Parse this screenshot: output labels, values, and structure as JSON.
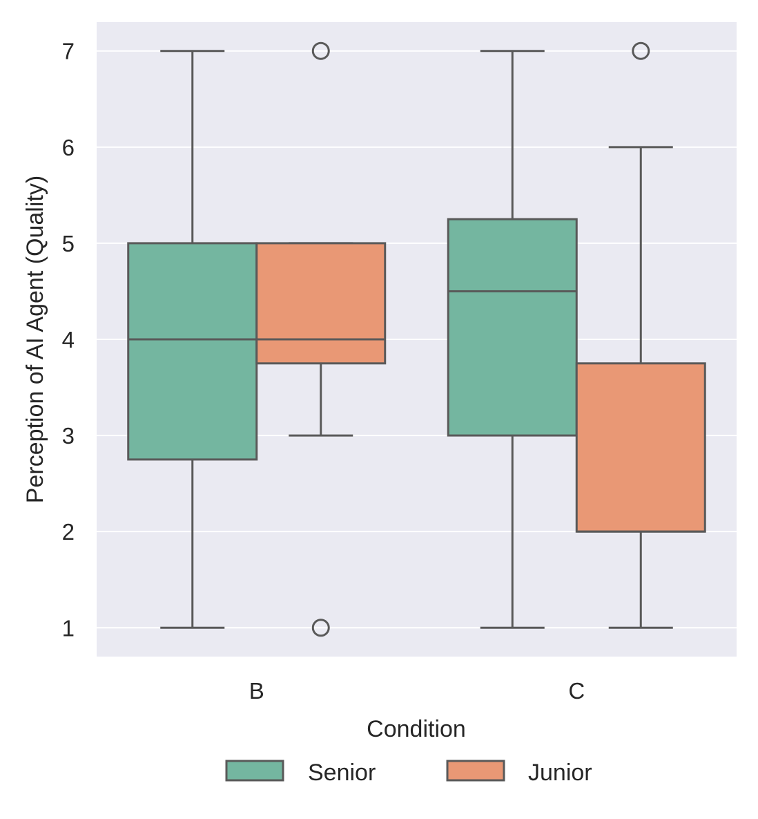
{
  "chart_data": {
    "type": "box",
    "xlabel": "Condition",
    "ylabel": "Perception of AI Agent (Quality)",
    "categories": [
      "B",
      "C"
    ],
    "ylim": [
      0.7,
      7.3
    ],
    "yticks": [
      1,
      2,
      3,
      4,
      5,
      6,
      7
    ],
    "grid": true,
    "legend_position": "bottom-center",
    "series": [
      {
        "name": "Senior",
        "color": "#74b6a0",
        "boxes": [
          {
            "category": "B",
            "whisker_low": 1,
            "q1": 2.75,
            "median": 4,
            "q3": 5,
            "whisker_high": 7,
            "outliers": []
          },
          {
            "category": "C",
            "whisker_low": 1,
            "q1": 3,
            "median": 4.5,
            "q3": 5.25,
            "whisker_high": 7,
            "outliers": []
          }
        ]
      },
      {
        "name": "Junior",
        "color": "#e99875",
        "boxes": [
          {
            "category": "B",
            "whisker_low": 3,
            "q1": 3.75,
            "median": 4,
            "q3": 5,
            "whisker_high": 5,
            "outliers": [
              7,
              1
            ]
          },
          {
            "category": "C",
            "whisker_low": 1,
            "q1": 2,
            "median": 2,
            "q3": 3.75,
            "whisker_high": 6,
            "outliers": [
              7
            ]
          }
        ]
      }
    ]
  },
  "style": {
    "plot_background": "#eaeaf2",
    "grid_color": "#ffffff",
    "line_color": "#595959"
  }
}
